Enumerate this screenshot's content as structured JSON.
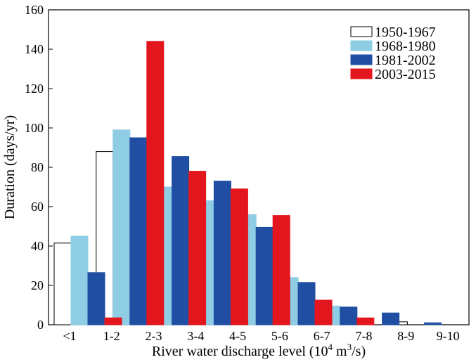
{
  "chart_data": {
    "type": "bar",
    "xlabel_main": "River water discharge level (10",
    "xlabel_sup1": "4",
    "xlabel_mid": " m",
    "xlabel_sup2": "3",
    "xlabel_end": "/s)",
    "ylabel": "Duration (days/yr)",
    "ylim": [
      0,
      160
    ],
    "yticks": [
      "0",
      "20",
      "40",
      "60",
      "80",
      "100",
      "120",
      "140",
      "160"
    ],
    "categories": [
      "<1",
      "1-2",
      "2-3",
      "3-4",
      "4-5",
      "5-6",
      "6-7",
      "7-8",
      "8-9",
      "9-10"
    ],
    "series": [
      {
        "name": "1950-1967",
        "color": "#ffffff",
        "values": [
          41.5,
          88,
          68,
          71,
          65.5,
          23,
          4,
          2,
          1.5,
          0
        ]
      },
      {
        "name": "1968-1980",
        "color": "#8ecde4",
        "values": [
          45,
          99,
          70,
          63,
          56,
          24,
          9.5,
          0,
          0,
          0
        ]
      },
      {
        "name": "1981-2002",
        "color": "#1f4ea3",
        "values": [
          26.5,
          95,
          85.5,
          73,
          49.5,
          21.5,
          9,
          6,
          1,
          0
        ]
      },
      {
        "name": "2003-2015",
        "color": "#e3161e",
        "values": [
          3.5,
          144,
          78,
          69,
          55.5,
          12.5,
          3.5,
          0,
          0,
          0
        ]
      }
    ],
    "legend_position": "top-right",
    "grid": false
  }
}
